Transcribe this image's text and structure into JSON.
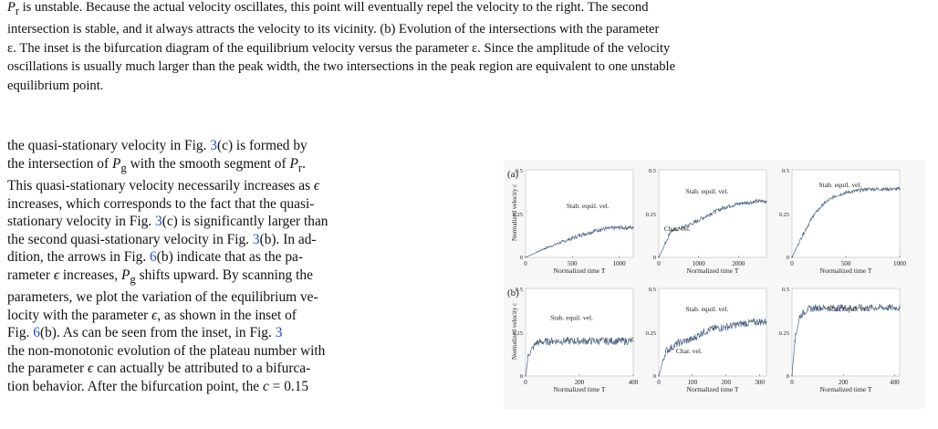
{
  "caption": {
    "line1": "P_r is unstable. Because the actual velocity oscillates, this point will eventually repel the velocity to the right. The second",
    "line2": "intersection is stable, and it always attracts the velocity to its vicinity. (b) Evolution of the intersections with the parameter",
    "line3": "ε. The inset is the bifurcation diagram of the equilibrium velocity versus the parameter ε. Since the amplitude of the velocity",
    "line4": "oscillations is usually much larger than the peak width, the two intersections in the peak region are equivalent to one unstable",
    "line5": "equilibrium point."
  },
  "body": [
    "the quasi-stationary velocity in Fig. 3(c) is formed by",
    "the intersection of P_g with the smooth segment of P_r.",
    "This quasi-stationary velocity necessarily increases as ε",
    "increases, which corresponds to the fact that the quasi-",
    "stationary velocity in Fig. 3(c) is significantly larger than",
    "the second quasi-stationary velocity in Fig. 3(b). In ad-",
    "dition, the arrows in Fig. 6(b) indicate that as the pa-",
    "rameter ε increases, P_g shifts upward. By scanning the",
    "parameters, we plot the variation of the equilibrium ve-",
    "locity with the parameter ε, as shown in the inset of",
    "Fig. 6(b).  As can be seen from the inset, in Fig. 3",
    "the non-monotonic evolution of the plateau number with",
    "the parameter ε can actually be attributed to a bifurca-",
    "tion behavior. After the bifurcation point, the c = 0.15"
  ],
  "figure": {
    "rows": [
      {
        "letter": "(a)",
        "ylabel": "Normalized velocity c",
        "panels": [
          {
            "ytick_top": "0.5",
            "ytick_mid": "0.25",
            "ytick_bot": "0",
            "xticks": [
              "0",
              "500",
              "1000"
            ],
            "xlabel": "Normalized time T",
            "annotations": [
              "Stab. equil. vel."
            ]
          },
          {
            "ytick_top": "0.5",
            "ytick_mid": "0.25",
            "ytick_bot": "0",
            "xticks": [
              "0",
              "1000",
              "2000"
            ],
            "xlabel": "Normalized time T",
            "annotations": [
              "Stab. equil. vel.",
              "Char. vel."
            ]
          },
          {
            "ytick_top": "0.5",
            "ytick_mid": "0.25",
            "ytick_bot": "0",
            "xticks": [
              "0",
              "500",
              "1000"
            ],
            "xlabel": "Normalized time T",
            "annotations": [
              "Stab. equil. vel."
            ]
          }
        ]
      },
      {
        "letter": "(b)",
        "ylabel": "Normalized velocity c",
        "panels": [
          {
            "ytick_top": "0.5",
            "ytick_mid": "0.25",
            "ytick_bot": "0",
            "xticks": [
              "0",
              "200",
              "400"
            ],
            "xlabel": "Normalized time T",
            "annotations": [
              "Stab. equil. vel."
            ]
          },
          {
            "ytick_top": "0.5",
            "ytick_mid": "0.25",
            "ytick_bot": "0",
            "xticks": [
              "0",
              "100",
              "200",
              "300"
            ],
            "xlabel": "Normalized time T",
            "annotations": [
              "Stab. equil. vel.",
              "Char. vel."
            ]
          },
          {
            "ytick_top": "0.5",
            "ytick_mid": "0.25",
            "ytick_bot": "0",
            "xticks": [
              "0",
              "200",
              "400"
            ],
            "xlabel": "Normalized time T",
            "annotations": [
              "Stab. equil. vel."
            ]
          }
        ]
      }
    ]
  },
  "chart_data": [
    {
      "type": "line",
      "panel": "a1",
      "xlabel": "Normalized time T",
      "ylabel": "Normalized velocity c",
      "xlim": [
        0,
        1150
      ],
      "ylim": [
        0,
        0.5
      ],
      "series": [
        {
          "x": [
            0,
            200,
            400,
            600,
            800,
            1000,
            1150
          ],
          "y": [
            0.0,
            0.05,
            0.09,
            0.13,
            0.16,
            0.17,
            0.17
          ]
        }
      ]
    },
    {
      "type": "line",
      "panel": "a2",
      "xlabel": "Normalized time T",
      "ylabel": "",
      "xlim": [
        0,
        2700
      ],
      "ylim": [
        0,
        0.5
      ],
      "series": [
        {
          "x": [
            0,
            300,
            600,
            900,
            1300,
            1700,
            2100,
            2500,
            2700
          ],
          "y": [
            0.0,
            0.15,
            0.17,
            0.2,
            0.25,
            0.29,
            0.31,
            0.32,
            0.32
          ]
        }
      ]
    },
    {
      "type": "line",
      "panel": "a3",
      "xlabel": "Normalized time T",
      "ylabel": "",
      "xlim": [
        0,
        1000
      ],
      "ylim": [
        0,
        0.5
      ],
      "series": [
        {
          "x": [
            0,
            100,
            200,
            300,
            400,
            500,
            600,
            700,
            850,
            1000
          ],
          "y": [
            0.0,
            0.13,
            0.24,
            0.31,
            0.35,
            0.37,
            0.38,
            0.39,
            0.39,
            0.39
          ]
        }
      ]
    },
    {
      "type": "line",
      "panel": "b1",
      "xlabel": "Normalized time T",
      "ylabel": "Normalized velocity c",
      "xlim": [
        0,
        400
      ],
      "ylim": [
        0,
        0.5
      ],
      "series": [
        {
          "x": [
            0,
            10,
            40,
            100,
            200,
            300,
            400
          ],
          "y": [
            0.0,
            0.12,
            0.19,
            0.2,
            0.2,
            0.2,
            0.2
          ]
        }
      ]
    },
    {
      "type": "line",
      "panel": "b2",
      "xlabel": "Normalized time T",
      "ylabel": "",
      "xlim": [
        0,
        320
      ],
      "ylim": [
        0,
        0.5
      ],
      "series": [
        {
          "x": [
            0,
            20,
            60,
            100,
            130,
            160,
            200,
            250,
            300,
            320
          ],
          "y": [
            0.0,
            0.14,
            0.19,
            0.21,
            0.25,
            0.27,
            0.28,
            0.3,
            0.31,
            0.31
          ]
        }
      ]
    },
    {
      "type": "line",
      "panel": "b3",
      "xlabel": "Normalized time T",
      "ylabel": "",
      "xlim": [
        0,
        420
      ],
      "ylim": [
        0,
        0.5
      ],
      "series": [
        {
          "x": [
            0,
            10,
            30,
            60,
            100,
            200,
            300,
            420
          ],
          "y": [
            0.0,
            0.2,
            0.34,
            0.38,
            0.39,
            0.39,
            0.39,
            0.39
          ]
        }
      ]
    }
  ]
}
